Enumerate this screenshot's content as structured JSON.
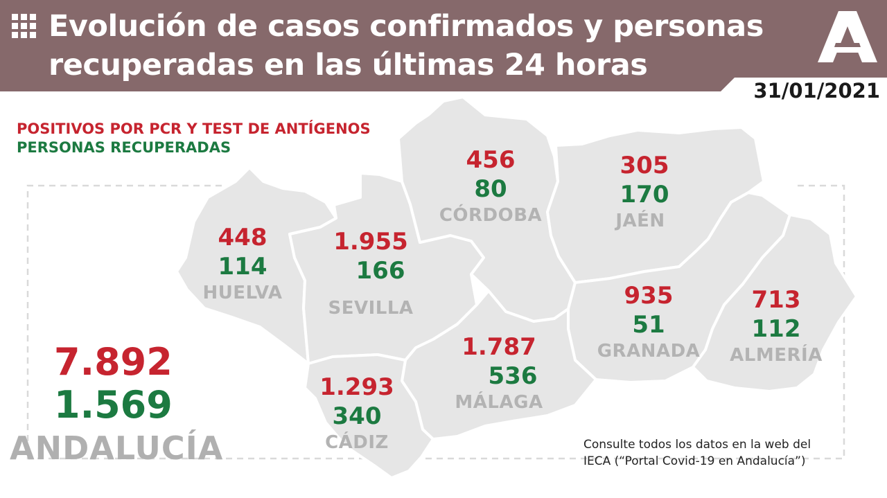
{
  "header": {
    "title_line1": "Evolución de casos confirmados y personas",
    "title_line2": "recuperadas en las últimas 24 horas",
    "date": "31/01/2021",
    "grid_icon": "grid-icon",
    "logo": "junta-andalucia-logo-icon"
  },
  "legend": {
    "positives": "POSITIVOS POR PCR Y TEST DE ANTÍGENOS",
    "recovered": "PERSONAS RECUPERADAS"
  },
  "colors": {
    "header_bg": "#86696b",
    "positives": "#c6242f",
    "recovered": "#1c7a41",
    "province_fill": "#e6e6e6",
    "label_grey": "#b3b3b3"
  },
  "provinces": [
    {
      "name": "HUELVA",
      "positives": "448",
      "recovered": "114"
    },
    {
      "name": "SEVILLA",
      "positives": "1.955",
      "recovered": "166"
    },
    {
      "name": "CÓRDOBA",
      "positives": "456",
      "recovered": "80"
    },
    {
      "name": "JAÉN",
      "positives": "305",
      "recovered": "170"
    },
    {
      "name": "GRANADA",
      "positives": "935",
      "recovered": "51"
    },
    {
      "name": "ALMERÍA",
      "positives": "713",
      "recovered": "112"
    },
    {
      "name": "MÁLAGA",
      "positives": "1.787",
      "recovered": "536"
    },
    {
      "name": "CÁDIZ",
      "positives": "1.293",
      "recovered": "340"
    }
  ],
  "total": {
    "name": "ANDALUCÍA",
    "positives": "7.892",
    "recovered": "1.569"
  },
  "footer": {
    "line1": "Consulte todos los datos en la web del",
    "line2": "IECA (“Portal Covid-19 en Andalucía”)"
  }
}
